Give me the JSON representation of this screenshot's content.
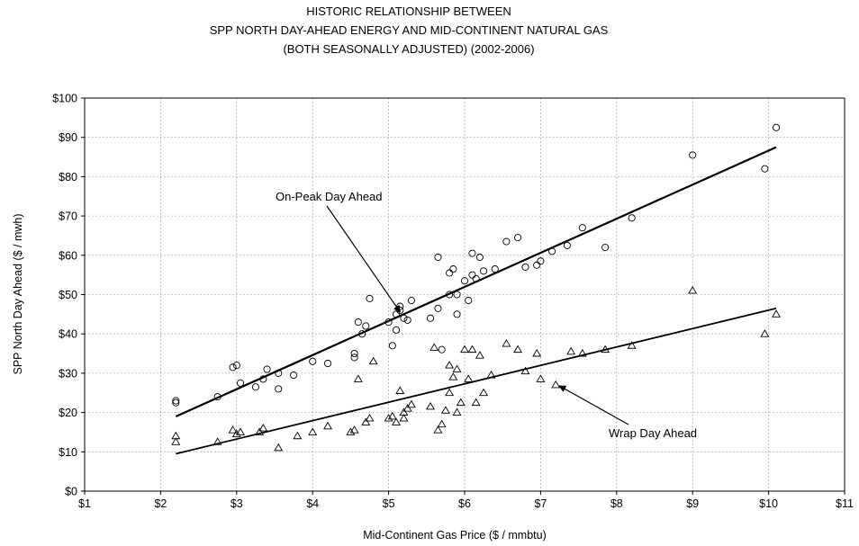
{
  "chart_data": {
    "type": "scatter",
    "title_lines": [
      "HISTORIC RELATIONSHIP BETWEEN",
      "SPP NORTH DAY-AHEAD ENERGY AND MID-CONTINENT NATURAL GAS",
      "(BOTH SEASONALLY ADJUSTED) (2002-2006)"
    ],
    "xlabel": "Mid-Continent Gas Price ($ / mmbtu)",
    "ylabel": "SPP North Day Ahead ($ / mwh)",
    "xlim": [
      1,
      11
    ],
    "ylim": [
      0,
      100
    ],
    "x_ticks": [
      1,
      2,
      3,
      4,
      5,
      6,
      7,
      8,
      9,
      10,
      11
    ],
    "x_tick_labels": [
      "$1",
      "$2",
      "$3",
      "$4",
      "$5",
      "$6",
      "$7",
      "$8",
      "$9",
      "$10",
      "$11"
    ],
    "y_ticks": [
      0,
      10,
      20,
      30,
      40,
      50,
      60,
      70,
      80,
      90,
      100
    ],
    "y_tick_labels": [
      "$0",
      "$10",
      "$20",
      "$30",
      "$40",
      "$50",
      "$60",
      "$70",
      "$80",
      "$90",
      "$100"
    ],
    "grid": true,
    "series": [
      {
        "name": "On-Peak Day Ahead",
        "marker": "circle",
        "trendline": [
          [
            2.2,
            19
          ],
          [
            10.1,
            87.5
          ]
        ],
        "points": [
          [
            2.2,
            22.5
          ],
          [
            2.2,
            23
          ],
          [
            2.75,
            24
          ],
          [
            2.95,
            31.5
          ],
          [
            3.0,
            32
          ],
          [
            3.05,
            27.5
          ],
          [
            3.25,
            26.5
          ],
          [
            3.35,
            28.5
          ],
          [
            3.4,
            31
          ],
          [
            3.55,
            30
          ],
          [
            3.55,
            26
          ],
          [
            3.75,
            29.5
          ],
          [
            4.0,
            33
          ],
          [
            4.2,
            32.5
          ],
          [
            4.55,
            35
          ],
          [
            4.55,
            34
          ],
          [
            4.6,
            43
          ],
          [
            4.65,
            40
          ],
          [
            4.7,
            42
          ],
          [
            4.75,
            49
          ],
          [
            5.0,
            43
          ],
          [
            5.05,
            37
          ],
          [
            5.1,
            41
          ],
          [
            5.1,
            45
          ],
          [
            5.15,
            47
          ],
          [
            5.15,
            46
          ],
          [
            5.2,
            44
          ],
          [
            5.25,
            43.5
          ],
          [
            5.3,
            48.5
          ],
          [
            5.55,
            44
          ],
          [
            5.65,
            59.5
          ],
          [
            5.65,
            46.5
          ],
          [
            5.7,
            36
          ],
          [
            5.8,
            55.5
          ],
          [
            5.8,
            50
          ],
          [
            5.85,
            56.5
          ],
          [
            5.9,
            45
          ],
          [
            5.9,
            50
          ],
          [
            6.0,
            53.5
          ],
          [
            6.05,
            48.5
          ],
          [
            6.1,
            55
          ],
          [
            6.1,
            60.5
          ],
          [
            6.15,
            54
          ],
          [
            6.2,
            59.5
          ],
          [
            6.25,
            56
          ],
          [
            6.4,
            56.5
          ],
          [
            6.55,
            63.5
          ],
          [
            6.7,
            64.5
          ],
          [
            6.8,
            57
          ],
          [
            6.95,
            57.5
          ],
          [
            7.0,
            58.5
          ],
          [
            7.15,
            61
          ],
          [
            7.35,
            62.5
          ],
          [
            7.55,
            67
          ],
          [
            7.85,
            62
          ],
          [
            8.2,
            69.5
          ],
          [
            9.0,
            85.5
          ],
          [
            9.95,
            82
          ],
          [
            10.1,
            92.5
          ]
        ]
      },
      {
        "name": "Wrap Day Ahead",
        "marker": "triangle",
        "trendline": [
          [
            2.2,
            9.5
          ],
          [
            10.1,
            46.5
          ]
        ],
        "points": [
          [
            2.2,
            12.5
          ],
          [
            2.2,
            14
          ],
          [
            2.75,
            12.5
          ],
          [
            2.95,
            15.5
          ],
          [
            3.0,
            14.5
          ],
          [
            3.05,
            15
          ],
          [
            3.3,
            15
          ],
          [
            3.35,
            16
          ],
          [
            3.55,
            11
          ],
          [
            3.8,
            14
          ],
          [
            4.0,
            15
          ],
          [
            4.2,
            16.5
          ],
          [
            4.5,
            15
          ],
          [
            4.55,
            15.5
          ],
          [
            4.6,
            28.5
          ],
          [
            4.7,
            17.5
          ],
          [
            4.75,
            18.5
          ],
          [
            4.8,
            33
          ],
          [
            5.0,
            18.5
          ],
          [
            5.05,
            19
          ],
          [
            5.1,
            17.5
          ],
          [
            5.15,
            25.5
          ],
          [
            5.2,
            18.5
          ],
          [
            5.2,
            20
          ],
          [
            5.25,
            21
          ],
          [
            5.3,
            22
          ],
          [
            5.55,
            21.5
          ],
          [
            5.6,
            36.5
          ],
          [
            5.65,
            15.5
          ],
          [
            5.7,
            17
          ],
          [
            5.75,
            20.5
          ],
          [
            5.8,
            25
          ],
          [
            5.8,
            32
          ],
          [
            5.85,
            29
          ],
          [
            5.9,
            20
          ],
          [
            5.9,
            31
          ],
          [
            5.95,
            22.5
          ],
          [
            6.0,
            36
          ],
          [
            6.05,
            28.5
          ],
          [
            6.1,
            36
          ],
          [
            6.15,
            22.5
          ],
          [
            6.2,
            34.5
          ],
          [
            6.25,
            25
          ],
          [
            6.35,
            29.5
          ],
          [
            6.55,
            37.5
          ],
          [
            6.7,
            36
          ],
          [
            6.8,
            30.5
          ],
          [
            6.95,
            35
          ],
          [
            7.0,
            28.5
          ],
          [
            7.2,
            27
          ],
          [
            7.4,
            35.5
          ],
          [
            7.55,
            35
          ],
          [
            7.85,
            36
          ],
          [
            8.2,
            37
          ],
          [
            9.0,
            51
          ],
          [
            9.95,
            40
          ],
          [
            10.1,
            45
          ]
        ]
      }
    ],
    "annotations": [
      {
        "text": "On-Peak Day Ahead",
        "arrow_to": [
          5.15,
          46.5
        ]
      },
      {
        "text": "Wrap Day Ahead",
        "arrow_to": [
          7.2,
          27
        ]
      }
    ]
  }
}
